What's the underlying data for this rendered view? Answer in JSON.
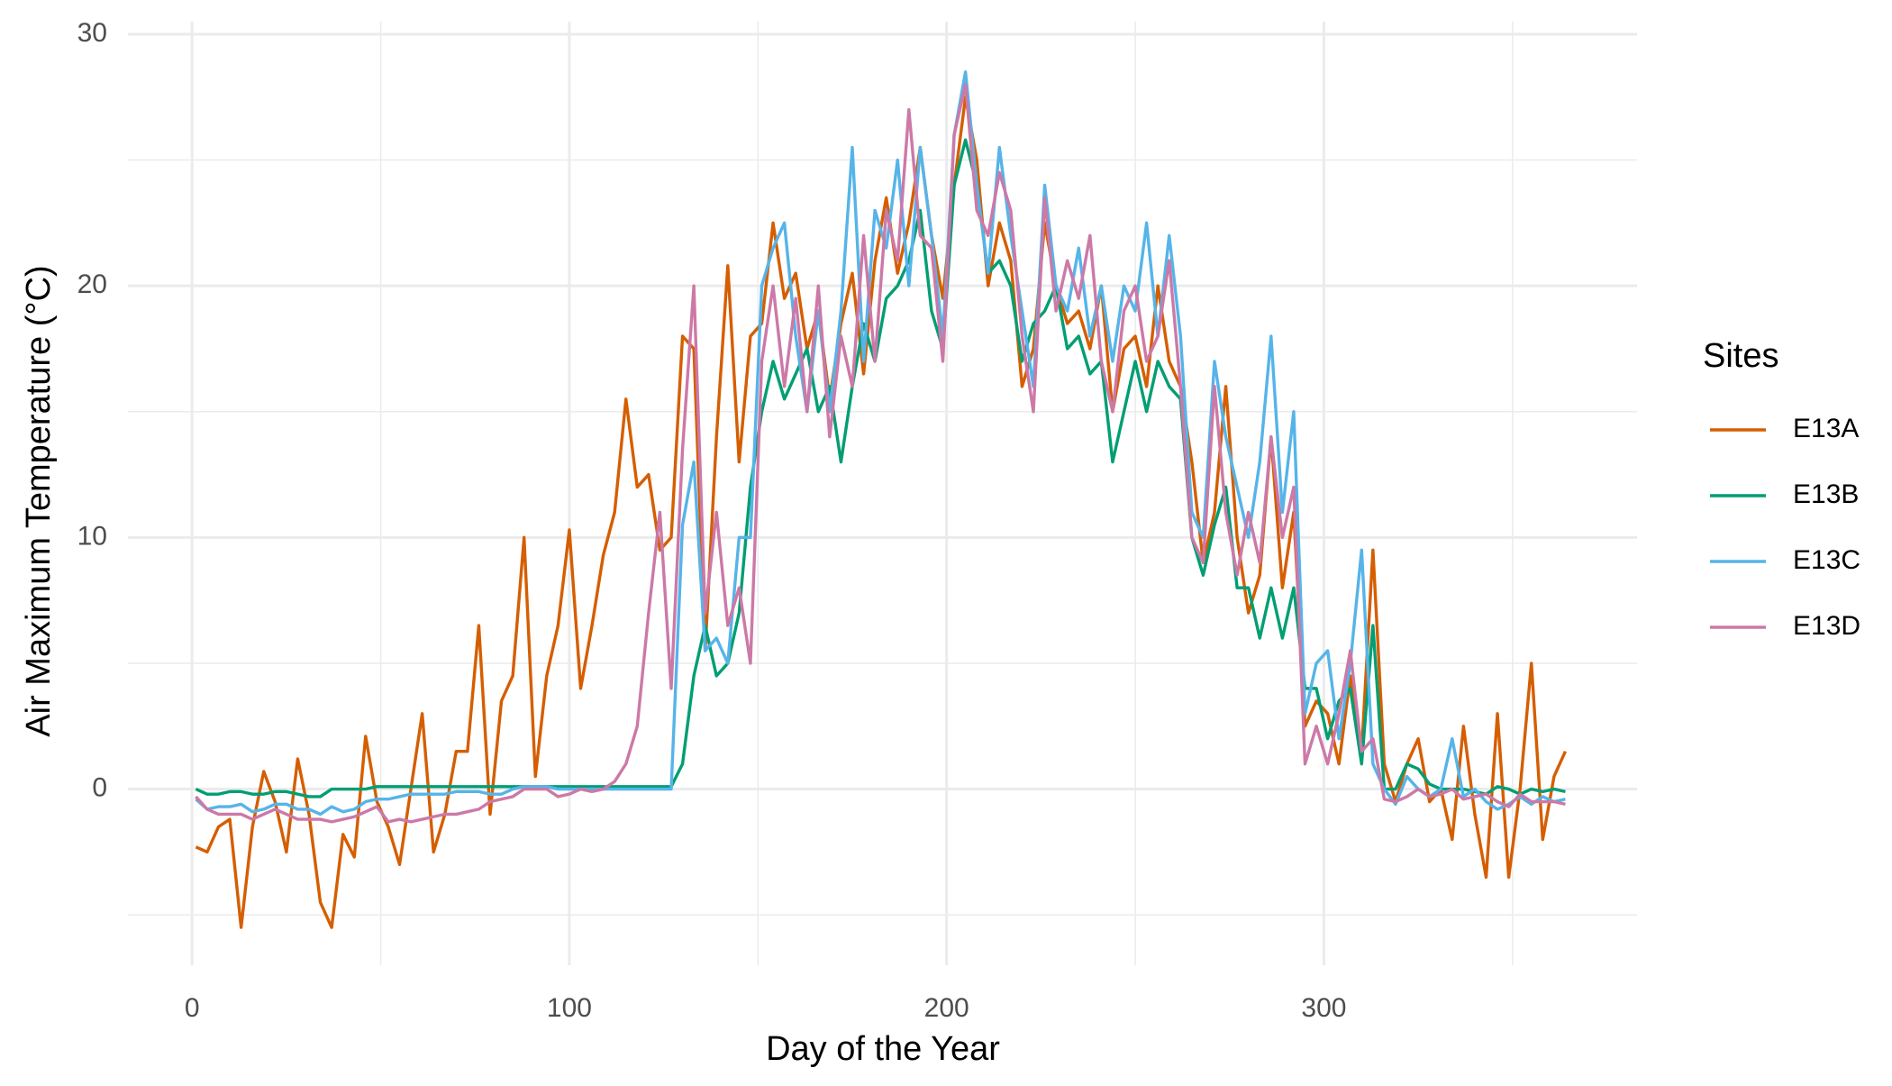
{
  "chart_data": {
    "type": "line",
    "x_label": "Day of the Year",
    "y_label": "Air Maximum Temperature (°C)",
    "legend_title": "Sites",
    "legend_position": "right",
    "grid": true,
    "xlim": [
      -17,
      383
    ],
    "ylim": [
      -7,
      30.5
    ],
    "xticks": [
      0,
      100,
      200,
      300
    ],
    "yticks": [
      0,
      10,
      20,
      30
    ],
    "x_minor_grid": [
      50,
      150,
      250,
      350
    ],
    "y_minor_grid": [
      -5,
      5,
      15,
      25
    ],
    "x": [
      1,
      4,
      7,
      10,
      13,
      16,
      19,
      22,
      25,
      28,
      31,
      34,
      37,
      40,
      43,
      46,
      49,
      52,
      55,
      58,
      61,
      64,
      67,
      70,
      73,
      76,
      79,
      82,
      85,
      88,
      91,
      94,
      97,
      100,
      103,
      106,
      109,
      112,
      115,
      118,
      121,
      124,
      127,
      130,
      133,
      136,
      139,
      142,
      145,
      148,
      151,
      154,
      157,
      160,
      163,
      166,
      169,
      172,
      175,
      178,
      181,
      184,
      187,
      190,
      193,
      196,
      199,
      202,
      205,
      208,
      211,
      214,
      217,
      220,
      223,
      226,
      229,
      232,
      235,
      238,
      241,
      244,
      247,
      250,
      253,
      256,
      259,
      262,
      265,
      268,
      271,
      274,
      277,
      280,
      283,
      286,
      289,
      292,
      295,
      298,
      301,
      304,
      307,
      310,
      313,
      316,
      319,
      322,
      325,
      328,
      331,
      334,
      337,
      340,
      343,
      346,
      349,
      352,
      355,
      358,
      361,
      364
    ],
    "series": [
      {
        "name": "E13A",
        "color": "#D55E00",
        "values": [
          -2.3,
          -2.5,
          -1.5,
          -1.2,
          -5.5,
          -1.5,
          0.7,
          -0.5,
          -2.5,
          1.2,
          -1,
          -4.5,
          -5.5,
          -1.8,
          -2.7,
          2.1,
          -0.5,
          -1.5,
          -3,
          0,
          3,
          -2.5,
          -1,
          1.5,
          1.5,
          6.5,
          -1,
          3.5,
          4.5,
          10,
          0.5,
          4.5,
          6.5,
          10.3,
          4,
          6.5,
          9.3,
          11,
          15.5,
          12,
          12.5,
          9.5,
          10,
          18,
          17.5,
          5.5,
          14,
          20.8,
          13,
          18,
          18.5,
          22.5,
          19.5,
          20.5,
          17.5,
          19,
          15.5,
          18.5,
          20.5,
          16.5,
          21,
          23.5,
          20.5,
          22.5,
          25.5,
          22,
          19.5,
          24,
          27.5,
          25,
          20,
          22.5,
          21,
          16,
          17.5,
          22.5,
          20,
          18.5,
          19,
          17.5,
          20,
          15,
          17.5,
          18,
          16,
          20,
          17,
          16,
          13,
          9,
          11,
          16,
          10,
          7,
          8.5,
          14,
          8,
          11,
          2.5,
          3.5,
          3,
          1,
          4.5,
          1.5,
          9.5,
          1,
          -0.5,
          1,
          2,
          -0.5,
          0,
          -2,
          2.5,
          -1,
          -3.5,
          3,
          -3.5,
          0,
          5,
          -2,
          0.5,
          1.5
        ]
      },
      {
        "name": "E13B",
        "color": "#009E73",
        "values": [
          0,
          -0.2,
          -0.2,
          -0.1,
          -0.1,
          -0.2,
          -0.2,
          -0.1,
          -0.1,
          -0.2,
          -0.3,
          -0.3,
          0,
          0,
          0,
          0,
          0.1,
          0.1,
          0.1,
          0.1,
          0.1,
          0.1,
          0.1,
          0.1,
          0.1,
          0.1,
          0.1,
          0.1,
          0.1,
          0.1,
          0.1,
          0.1,
          0.1,
          0.1,
          0.1,
          0.1,
          0.1,
          0.1,
          0.1,
          0.1,
          0.1,
          0.1,
          0.1,
          1,
          4.5,
          6.5,
          4.5,
          5,
          7,
          12,
          15,
          17,
          15.5,
          16.5,
          17.5,
          15,
          16,
          13,
          16,
          18.5,
          17,
          19.5,
          20,
          21,
          23,
          19,
          17.5,
          24,
          25.8,
          24,
          20.5,
          21,
          20,
          17,
          18.5,
          19,
          20,
          17.5,
          18,
          16.5,
          17,
          13,
          15,
          17,
          15,
          17,
          16,
          15.5,
          10,
          8.5,
          10.5,
          12,
          8,
          8,
          6,
          8,
          6,
          8,
          4,
          4,
          2,
          3.5,
          4,
          1,
          6.5,
          0,
          0,
          1,
          0.8,
          0.2,
          0,
          0,
          0,
          -0.1,
          -0.2,
          0.1,
          0,
          -0.2,
          0,
          -0.1,
          0,
          -0.1
        ]
      },
      {
        "name": "E13C",
        "color": "#56B4E9",
        "values": [
          -0.4,
          -0.8,
          -0.7,
          -0.7,
          -0.6,
          -0.9,
          -0.8,
          -0.6,
          -0.6,
          -0.8,
          -0.8,
          -1,
          -0.7,
          -0.9,
          -0.8,
          -0.5,
          -0.4,
          -0.4,
          -0.3,
          -0.2,
          -0.2,
          -0.2,
          -0.2,
          -0.1,
          -0.1,
          -0.1,
          -0.2,
          -0.2,
          0,
          0.1,
          0.1,
          0.1,
          0,
          0,
          0,
          0,
          0,
          0,
          0,
          0,
          0,
          0,
          0,
          10.5,
          13,
          5.5,
          6,
          5,
          10,
          10,
          20,
          21.5,
          22.5,
          18,
          15,
          19,
          15,
          19,
          25.5,
          17,
          23,
          21.5,
          25,
          20,
          25.5,
          22,
          18,
          26,
          28.5,
          24,
          20.5,
          25.5,
          22,
          19,
          16,
          24,
          20,
          19,
          21.5,
          18,
          20,
          17,
          20,
          19,
          22.5,
          18,
          22,
          18,
          11,
          10,
          17,
          14,
          12,
          10,
          13,
          18,
          11,
          15,
          3,
          5,
          5.5,
          2,
          5,
          9.5,
          1,
          0,
          -0.6,
          0.5,
          0,
          -0.3,
          0,
          2,
          -0.3,
          0,
          -0.5,
          -0.8,
          -0.6,
          -0.3,
          -0.6,
          -0.3,
          -0.5,
          -0.4
        ]
      },
      {
        "name": "E13D",
        "color": "#CC79A7",
        "values": [
          -0.3,
          -0.8,
          -1,
          -1,
          -1,
          -1.2,
          -1,
          -0.8,
          -1,
          -1.2,
          -1.2,
          -1.2,
          -1.3,
          -1.2,
          -1.1,
          -0.9,
          -0.7,
          -1.3,
          -1.2,
          -1.3,
          -1.2,
          -1.1,
          -1,
          -1,
          -0.9,
          -0.8,
          -0.5,
          -0.4,
          -0.3,
          0,
          0,
          0,
          -0.3,
          -0.2,
          0,
          -0.1,
          0,
          0.3,
          1,
          2.5,
          7,
          11,
          4,
          13.5,
          20,
          7,
          11,
          6.5,
          8,
          5,
          17,
          20,
          16,
          19.5,
          15,
          20,
          14,
          18,
          16,
          22,
          17,
          23,
          21,
          27,
          22,
          21.5,
          17,
          26,
          28,
          23,
          22,
          24.5,
          23,
          18,
          15,
          23.5,
          19,
          21,
          19.5,
          22,
          17,
          15,
          19,
          20,
          17,
          18,
          21,
          16,
          10,
          9,
          16,
          11,
          8.5,
          11,
          9,
          14,
          10,
          12,
          1,
          2.5,
          1,
          3,
          5.5,
          1.5,
          2,
          -0.4,
          -0.5,
          -0.3,
          0,
          -0.3,
          -0.2,
          0,
          -0.4,
          -0.3,
          -0.2,
          -0.5,
          -0.7,
          -0.2,
          -0.5,
          -0.5,
          -0.5,
          -0.6
        ]
      }
    ]
  }
}
